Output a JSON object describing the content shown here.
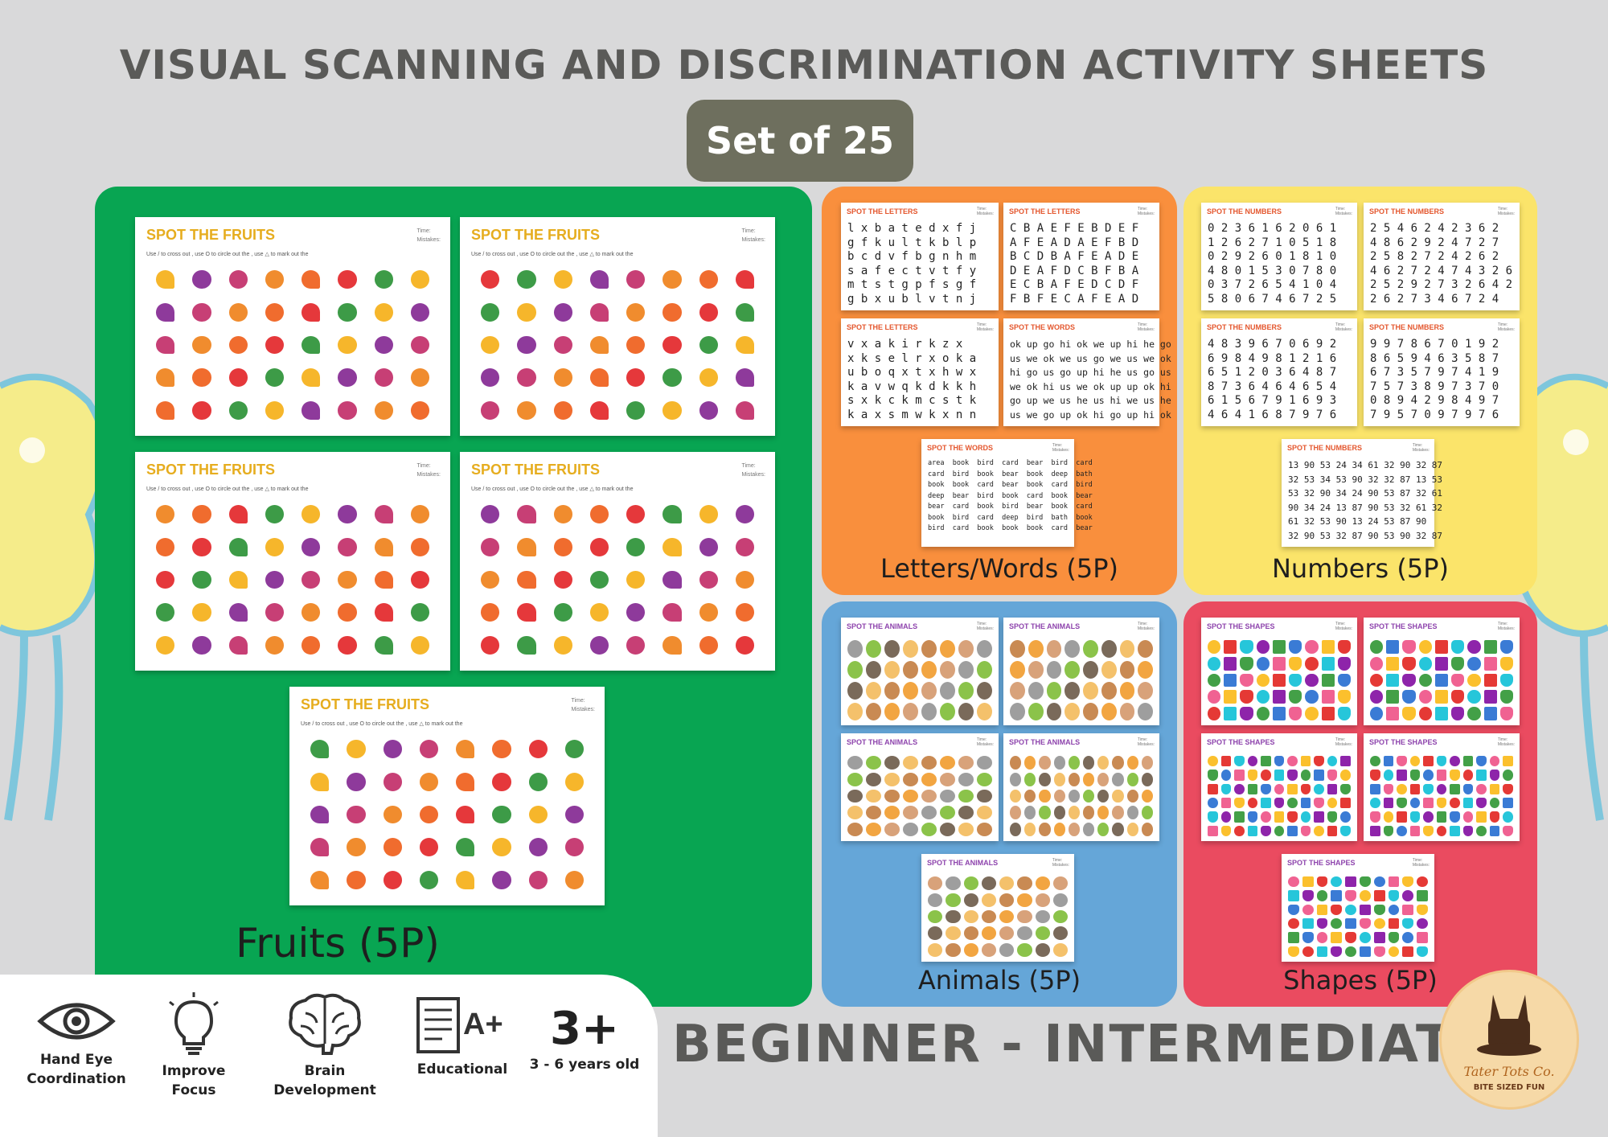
{
  "header": {
    "title": "VISUAL SCANNING AND DISCRIMINATION ACTIVITY SHEETS",
    "set_label": "Set of 25"
  },
  "panels": {
    "fruits": {
      "label": "Fruits (5P)",
      "color": "#08a552",
      "sheet_title": "SPOT THE FRUITS"
    },
    "letters": {
      "label": "Letters/Words (5P)",
      "color": "#f98f3d",
      "sheet_titles": [
        "SPOT THE LETTERS",
        "SPOT THE LETTERS",
        "SPOT THE LETTERS",
        "SPOT THE WORDS",
        "SPOT THE WORDS"
      ]
    },
    "numbers": {
      "label": "Numbers (5P)",
      "color": "#fbe46a",
      "sheet_title": "SPOT THE NUMBERS"
    },
    "animals": {
      "label": "Animals (5P)",
      "color": "#65a6d8",
      "sheet_title": "SPOT THE ANIMALS"
    },
    "shapes": {
      "label": "Shapes (5P)",
      "color": "#ea4b60",
      "sheet_title": "SPOT THE SHAPES"
    }
  },
  "sheet_text": {
    "time": "Time:",
    "mistakes": "Mistakes:",
    "instruction": "Use / to cross out , use O to circle out the , use △ to mark out the"
  },
  "letters_grid_1": [
    "l x b a t e d x f j",
    "g f k u l t k b l p",
    "b c d v f b g n h m",
    "s a f e c t v t f y",
    "m t s t g p f s g f",
    "g b x u b l v t n j"
  ],
  "letters_grid_2": [
    "C B A E F E B D E F",
    "A F E A D A E F B D",
    "B C D B A F E A D E",
    "D E A F D C B F B A",
    "E C B A F E D C D F",
    "F B F E C A F E A D"
  ],
  "letters_grid_3": [
    "v x a k i r k z x",
    "x k s e l r x o k a",
    "u b o q x t x h w x",
    "k a v w q k d k k h",
    "s x k c k m c s t k",
    "k a x s m w k x n n"
  ],
  "words_grid_1": [
    "ok up go hi ok we up hi he go",
    "us we ok we us go we us we ok",
    "hi go us go up hi he us go us",
    "we ok hi us we ok up up ok hi",
    "go up we us he us hi we us he",
    "us we go up ok hi go up hi ok"
  ],
  "words_grid_2": [
    "area  book  bird  card  bear  bird  card",
    "card  bird  book  bear  book  deep  bath",
    "book  book  card  bear  book  card  bird",
    "deep  bear  bird  book  card  book  bear",
    "bear  card  book  bird  bear  book  card",
    "book  bird  card  deep  bird  bath  book",
    "bird  card  book  book  book  card  bear"
  ],
  "numbers_grid_1": [
    "0 2 3 6 1 6 2 0 6 1",
    "1 2 6 2 7 1 0 5 1 8",
    "0 2 9 2 6 0 1 8 1 0",
    "4 8 0 1 5 3 0 7 8 0",
    "0 3 7 2 6 5 4 1 0 4",
    "5 8 0 6 7 4 6 7 2 5"
  ],
  "numbers_grid_2": [
    "2 5 4 6 2 4 2 3 6 2",
    "4 8 6 2 9 2 4 7 2 7",
    "2 5 8 2 7 2 4 2 6 2",
    "4 6 2 7 2 4 7 4 3 2 6",
    "2 5 2 9 2 7 3 2 6 4 2",
    "2 6 2 7 3 4 6 7 2 4"
  ],
  "numbers_grid_3": [
    "4 8 3 9 6 7 0 6 9 2",
    "6 9 8 4 9 8 1 2 1 6",
    "6 5 1 2 0 3 6 4 8 7",
    "8 7 3 6 4 6 4 6 5 4",
    "6 1 5 6 7 9 1 6 9 3",
    "4 6 4 1 6 8 7 9 7 6"
  ],
  "numbers_grid_4": [
    "9 9 7 8 6 7 0 1 9 2",
    "8 6 5 9 4 6 3 5 8 7",
    "6 7 3 5 7 9 7 4 1 9",
    "7 5 7 3 8 9 7 3 7 0",
    "0 8 9 4 2 9 8 4 9 7",
    "7 9 5 7 0 9 7 9 7 6"
  ],
  "numbers_grid_5": [
    "13 90 53 24 34 61 32 90 32 87",
    "32 53 34 53 90 32 32 87 13 53",
    "53 32 90 34 24 90 53 87 32 61",
    "90 34 24 13 87 90 53 32 61 32",
    "61 32 53 90 13 24 53 87 90",
    "32 90 53 32 87 90 53 90 32 87"
  ],
  "features": [
    {
      "label": "Hand Eye\nCoordination",
      "icon": "eye-icon"
    },
    {
      "label": "Improve\nFocus",
      "icon": "lightbulb-icon"
    },
    {
      "label": "Brain\nDevelopment",
      "icon": "brain-icon"
    },
    {
      "label": "Educational",
      "icon": "a-plus-document-icon"
    },
    {
      "label": "3 - 6 years old",
      "badge": "3+",
      "icon": "age-badge-icon"
    }
  ],
  "level_text": "BEGINNER - INTERMEDIATE",
  "brand": {
    "name": "Tater Tots Co.",
    "tagline": "BITE SIZED FUN"
  }
}
